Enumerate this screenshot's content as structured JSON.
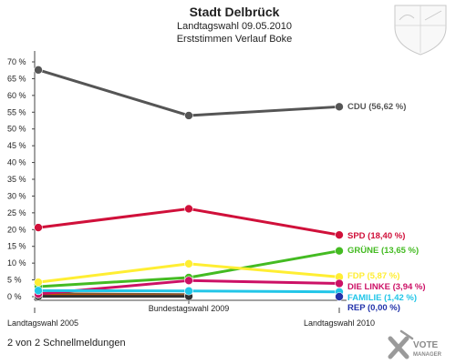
{
  "chart_data": {
    "type": "line",
    "title": "Stadt Delbrück",
    "subtitle_1": "Landtagswahl 09.05.2010",
    "subtitle_2": "Erststimmen Verlauf Boke",
    "categories": [
      "Landtagswahl 2005",
      "Bundestagswahl 2009",
      "Landtagswahl 2010"
    ],
    "y_ticks": [
      "0 %",
      "5 %",
      "10 %",
      "15 %",
      "20 %",
      "25 %",
      "30 %",
      "35 %",
      "40 %",
      "45 %",
      "50 %",
      "55 %",
      "60 %",
      "65 %",
      "70 %"
    ],
    "ylim": [
      0,
      70
    ],
    "grid": false,
    "series": [
      {
        "name": "CDU",
        "color": "#555555",
        "values": [
          67.6,
          54.0,
          56.62
        ],
        "end_label": "CDU (56,62 %)"
      },
      {
        "name": "SPD",
        "color": "#d0103a",
        "values": [
          20.6,
          26.2,
          18.4
        ],
        "end_label": "SPD (18,40 %)"
      },
      {
        "name": "GRÜNE",
        "color": "#44bb22",
        "values": [
          3.0,
          5.7,
          13.65
        ],
        "end_label": "GRÜNE (13,65 %)"
      },
      {
        "name": "FDP",
        "color": "#ffee33",
        "values": [
          4.3,
          9.8,
          5.87
        ],
        "end_label": "FDP (5,87 %)"
      },
      {
        "name": "DIE LINKE",
        "color": "#cc1166",
        "values": [
          0.8,
          4.8,
          3.94
        ],
        "end_label": "DIE LINKE (3,94 %)"
      },
      {
        "name": "FAMILIE",
        "color": "#22c6e8",
        "values": [
          1.8,
          1.7,
          1.42
        ],
        "end_label": "FAMILIE (1,42 %)"
      },
      {
        "name": "REP",
        "color": "#2233aa",
        "values": [
          null,
          null,
          0.0
        ],
        "end_label": "REP (0,00 %)"
      }
    ],
    "extra_series": [
      {
        "color": "#7a5a3a",
        "values": [
          0.9,
          0.6,
          null
        ]
      },
      {
        "color": "#cc5500",
        "values": [
          0.4,
          0.2,
          null
        ]
      },
      {
        "color": "#333333",
        "values": [
          0.1,
          0.1,
          null
        ]
      }
    ]
  },
  "footer": "2 von 2 Schnellmeldungen",
  "logo": {
    "line1": "VOTE",
    "line2": "MANAGER"
  }
}
